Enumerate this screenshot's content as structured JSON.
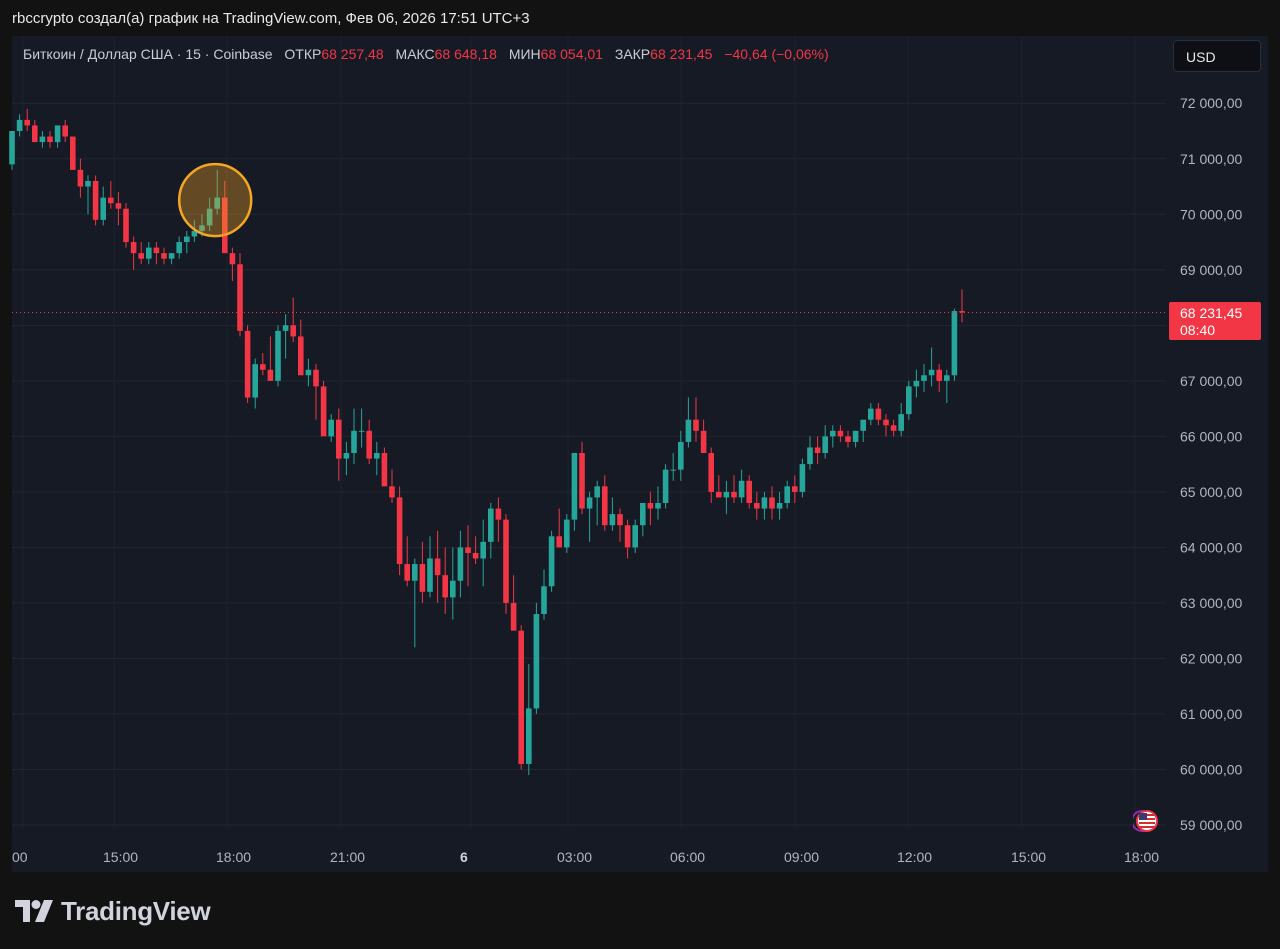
{
  "attribution": "rbccrypto создал(а) график на TradingView.com, Фев 06, 2026 17:51 UTC+3",
  "legend": {
    "symbol": "Биткоин / Доллар США · 15 · Coinbase",
    "open_label": "ОТКР",
    "open": "68 257,48",
    "high_label": "МАКС",
    "high": "68 648,18",
    "low_label": "МИН",
    "low": "68 054,01",
    "close_label": "ЗАКР",
    "close": "68 231,45",
    "change": "−40,64 (−0,06%)"
  },
  "currency_button": "USD",
  "price_tag": {
    "price": "68 231,45",
    "countdown": "08:40"
  },
  "logo_text": "TradingView",
  "colors": {
    "up": "#26a69a",
    "down": "#f23645",
    "background": "#161a25",
    "highlight": "#f5a623"
  },
  "icons": {
    "flag": "us-flag-icon",
    "logo": "tradingview-logo-icon"
  },
  "chart_data": {
    "type": "candlestick",
    "timeframe": "15",
    "ylim": [
      58800,
      72600
    ],
    "y_ticks": [
      59000,
      60000,
      61000,
      62000,
      63000,
      64000,
      65000,
      66000,
      67000,
      68000,
      69000,
      70000,
      71000,
      72000
    ],
    "y_tick_labels": [
      "59 000,00",
      "60 000,00",
      "61 000,00",
      "62 000,00",
      "63 000,00",
      "64 000,00",
      "65 000,00",
      "66 000,00",
      "67 000,00",
      "68 000,00",
      "69 000,00",
      "70 000,00",
      "71 000,00",
      "72 000,00"
    ],
    "x_tick_labels": [
      "00",
      "15:00",
      "18:00",
      "21:00",
      "6",
      "03:00",
      "06:00",
      "09:00",
      "12:00",
      "15:00",
      "18:00"
    ],
    "x_tick_bold": [
      false,
      false,
      false,
      false,
      true,
      false,
      false,
      false,
      false,
      false,
      false
    ],
    "last_price": 68231.45,
    "highlight_candle_index": 27,
    "candles": [
      [
        70900,
        71500,
        70800,
        71500
      ],
      [
        71500,
        71800,
        71400,
        71700
      ],
      [
        71700,
        71900,
        71500,
        71600
      ],
      [
        71600,
        71700,
        71300,
        71300
      ],
      [
        71300,
        71500,
        71200,
        71400
      ],
      [
        71400,
        71500,
        71200,
        71300
      ],
      [
        71300,
        71600,
        71200,
        71600
      ],
      [
        71600,
        71700,
        71300,
        71400
      ],
      [
        71400,
        71400,
        70800,
        70800
      ],
      [
        70800,
        71000,
        70300,
        70500
      ],
      [
        70500,
        70700,
        70000,
        70600
      ],
      [
        70600,
        70700,
        69800,
        69900
      ],
      [
        69900,
        70500,
        69800,
        70300
      ],
      [
        70300,
        70600,
        70100,
        70200
      ],
      [
        70200,
        70400,
        69800,
        70100
      ],
      [
        70100,
        70200,
        69400,
        69500
      ],
      [
        69500,
        69600,
        69000,
        69300
      ],
      [
        69300,
        69500,
        69100,
        69200
      ],
      [
        69200,
        69500,
        69100,
        69400
      ],
      [
        69400,
        69500,
        69100,
        69300
      ],
      [
        69300,
        69400,
        69100,
        69200
      ],
      [
        69200,
        69300,
        69100,
        69300
      ],
      [
        69300,
        69600,
        69200,
        69500
      ],
      [
        69500,
        69700,
        69300,
        69600
      ],
      [
        69600,
        69900,
        69500,
        69700
      ],
      [
        69700,
        70000,
        69600,
        69800
      ],
      [
        69800,
        70300,
        69700,
        70100
      ],
      [
        70100,
        70800,
        70000,
        70300
      ],
      [
        70300,
        70600,
        69300,
        69300
      ],
      [
        69300,
        69400,
        68800,
        69100
      ],
      [
        69100,
        69300,
        67800,
        67900
      ],
      [
        67900,
        68000,
        66600,
        66700
      ],
      [
        66700,
        67400,
        66500,
        67300
      ],
      [
        67300,
        67500,
        67100,
        67200
      ],
      [
        67200,
        67800,
        67000,
        67000
      ],
      [
        67000,
        68000,
        66900,
        67900
      ],
      [
        67900,
        68200,
        67400,
        68000
      ],
      [
        68000,
        68500,
        67700,
        67800
      ],
      [
        67800,
        68100,
        67100,
        67100
      ],
      [
        67100,
        67400,
        66900,
        67200
      ],
      [
        67200,
        67300,
        66300,
        66900
      ],
      [
        66900,
        67000,
        66100,
        66000
      ],
      [
        66000,
        66400,
        65900,
        66300
      ],
      [
        66300,
        66500,
        65200,
        65600
      ],
      [
        65600,
        65900,
        65300,
        65700
      ],
      [
        65700,
        66500,
        65500,
        66100
      ],
      [
        66100,
        66500,
        65800,
        66100
      ],
      [
        66100,
        66300,
        65500,
        65600
      ],
      [
        65600,
        65900,
        65300,
        65700
      ],
      [
        65700,
        65800,
        65100,
        65100
      ],
      [
        65100,
        65400,
        64800,
        64900
      ],
      [
        64900,
        65100,
        63500,
        63700
      ],
      [
        63700,
        64200,
        63300,
        63400
      ],
      [
        63400,
        63800,
        62200,
        63700
      ],
      [
        63700,
        64100,
        63000,
        63200
      ],
      [
        63200,
        64200,
        63100,
        63800
      ],
      [
        63800,
        64300,
        63000,
        63500
      ],
      [
        63500,
        64000,
        62800,
        63100
      ],
      [
        63100,
        64000,
        62700,
        63400
      ],
      [
        63400,
        64300,
        63100,
        64000
      ],
      [
        64000,
        64400,
        63300,
        63900
      ],
      [
        63900,
        64200,
        63700,
        63800
      ],
      [
        63800,
        64500,
        63300,
        64100
      ],
      [
        64100,
        64800,
        63800,
        64700
      ],
      [
        64700,
        64900,
        64100,
        64500
      ],
      [
        64500,
        64600,
        62800,
        63000
      ],
      [
        63000,
        63500,
        62600,
        62500
      ],
      [
        62500,
        62600,
        60000,
        60100
      ],
      [
        60100,
        61900,
        59900,
        61100
      ],
      [
        61100,
        63000,
        61000,
        62800
      ],
      [
        62800,
        63600,
        62700,
        63300
      ],
      [
        63300,
        64300,
        63200,
        64200
      ],
      [
        64200,
        64700,
        64000,
        64000
      ],
      [
        64000,
        64600,
        63900,
        64500
      ],
      [
        64500,
        65700,
        64300,
        65700
      ],
      [
        65700,
        65900,
        64600,
        64700
      ],
      [
        64700,
        65000,
        64100,
        64900
      ],
      [
        64900,
        65200,
        64400,
        65100
      ],
      [
        65100,
        65300,
        64300,
        64400
      ],
      [
        64400,
        64900,
        64300,
        64600
      ],
      [
        64600,
        64700,
        64100,
        64400
      ],
      [
        64400,
        64500,
        63800,
        64000
      ],
      [
        64000,
        64500,
        63900,
        64400
      ],
      [
        64400,
        64800,
        64200,
        64800
      ],
      [
        64800,
        65000,
        64400,
        64700
      ],
      [
        64700,
        65100,
        64500,
        64800
      ],
      [
        64800,
        65500,
        64700,
        65400
      ],
      [
        65400,
        65700,
        65200,
        65400
      ],
      [
        65400,
        66100,
        65200,
        65900
      ],
      [
        65900,
        66700,
        65800,
        66300
      ],
      [
        66300,
        66700,
        65900,
        66100
      ],
      [
        66100,
        66300,
        65700,
        65700
      ],
      [
        65700,
        65800,
        64800,
        65000
      ],
      [
        65000,
        65300,
        64900,
        64900
      ],
      [
        64900,
        65200,
        64600,
        65000
      ],
      [
        65000,
        65300,
        64800,
        64900
      ],
      [
        64900,
        65400,
        64800,
        65200
      ],
      [
        65200,
        65300,
        64700,
        64800
      ],
      [
        64800,
        65000,
        64500,
        64700
      ],
      [
        64700,
        65000,
        64500,
        64900
      ],
      [
        64900,
        65100,
        64500,
        64700
      ],
      [
        64700,
        65000,
        64500,
        64800
      ],
      [
        64800,
        65200,
        64700,
        65100
      ],
      [
        65100,
        65300,
        64800,
        65000
      ],
      [
        65000,
        65600,
        64900,
        65500
      ],
      [
        65500,
        66000,
        65400,
        65800
      ],
      [
        65800,
        66000,
        65500,
        65700
      ],
      [
        65700,
        66200,
        65600,
        66000
      ],
      [
        66000,
        66200,
        65800,
        66100
      ],
      [
        66100,
        66200,
        65900,
        66000
      ],
      [
        66000,
        66100,
        65800,
        65900
      ],
      [
        65900,
        66100,
        65800,
        66100
      ],
      [
        66100,
        66300,
        65900,
        66300
      ],
      [
        66300,
        66600,
        66200,
        66500
      ],
      [
        66500,
        66600,
        66200,
        66300
      ],
      [
        66300,
        66400,
        66000,
        66200
      ],
      [
        66200,
        66300,
        66000,
        66100
      ],
      [
        66100,
        66600,
        66000,
        66400
      ],
      [
        66400,
        67000,
        66300,
        66900
      ],
      [
        66900,
        67200,
        66700,
        67000
      ],
      [
        67000,
        67300,
        66800,
        67100
      ],
      [
        67100,
        67600,
        66900,
        67200
      ],
      [
        67200,
        67300,
        66800,
        67000
      ],
      [
        67000,
        67200,
        66600,
        67100
      ],
      [
        67100,
        68300,
        67000,
        68257
      ],
      [
        68257,
        68648,
        68054,
        68231
      ]
    ]
  }
}
